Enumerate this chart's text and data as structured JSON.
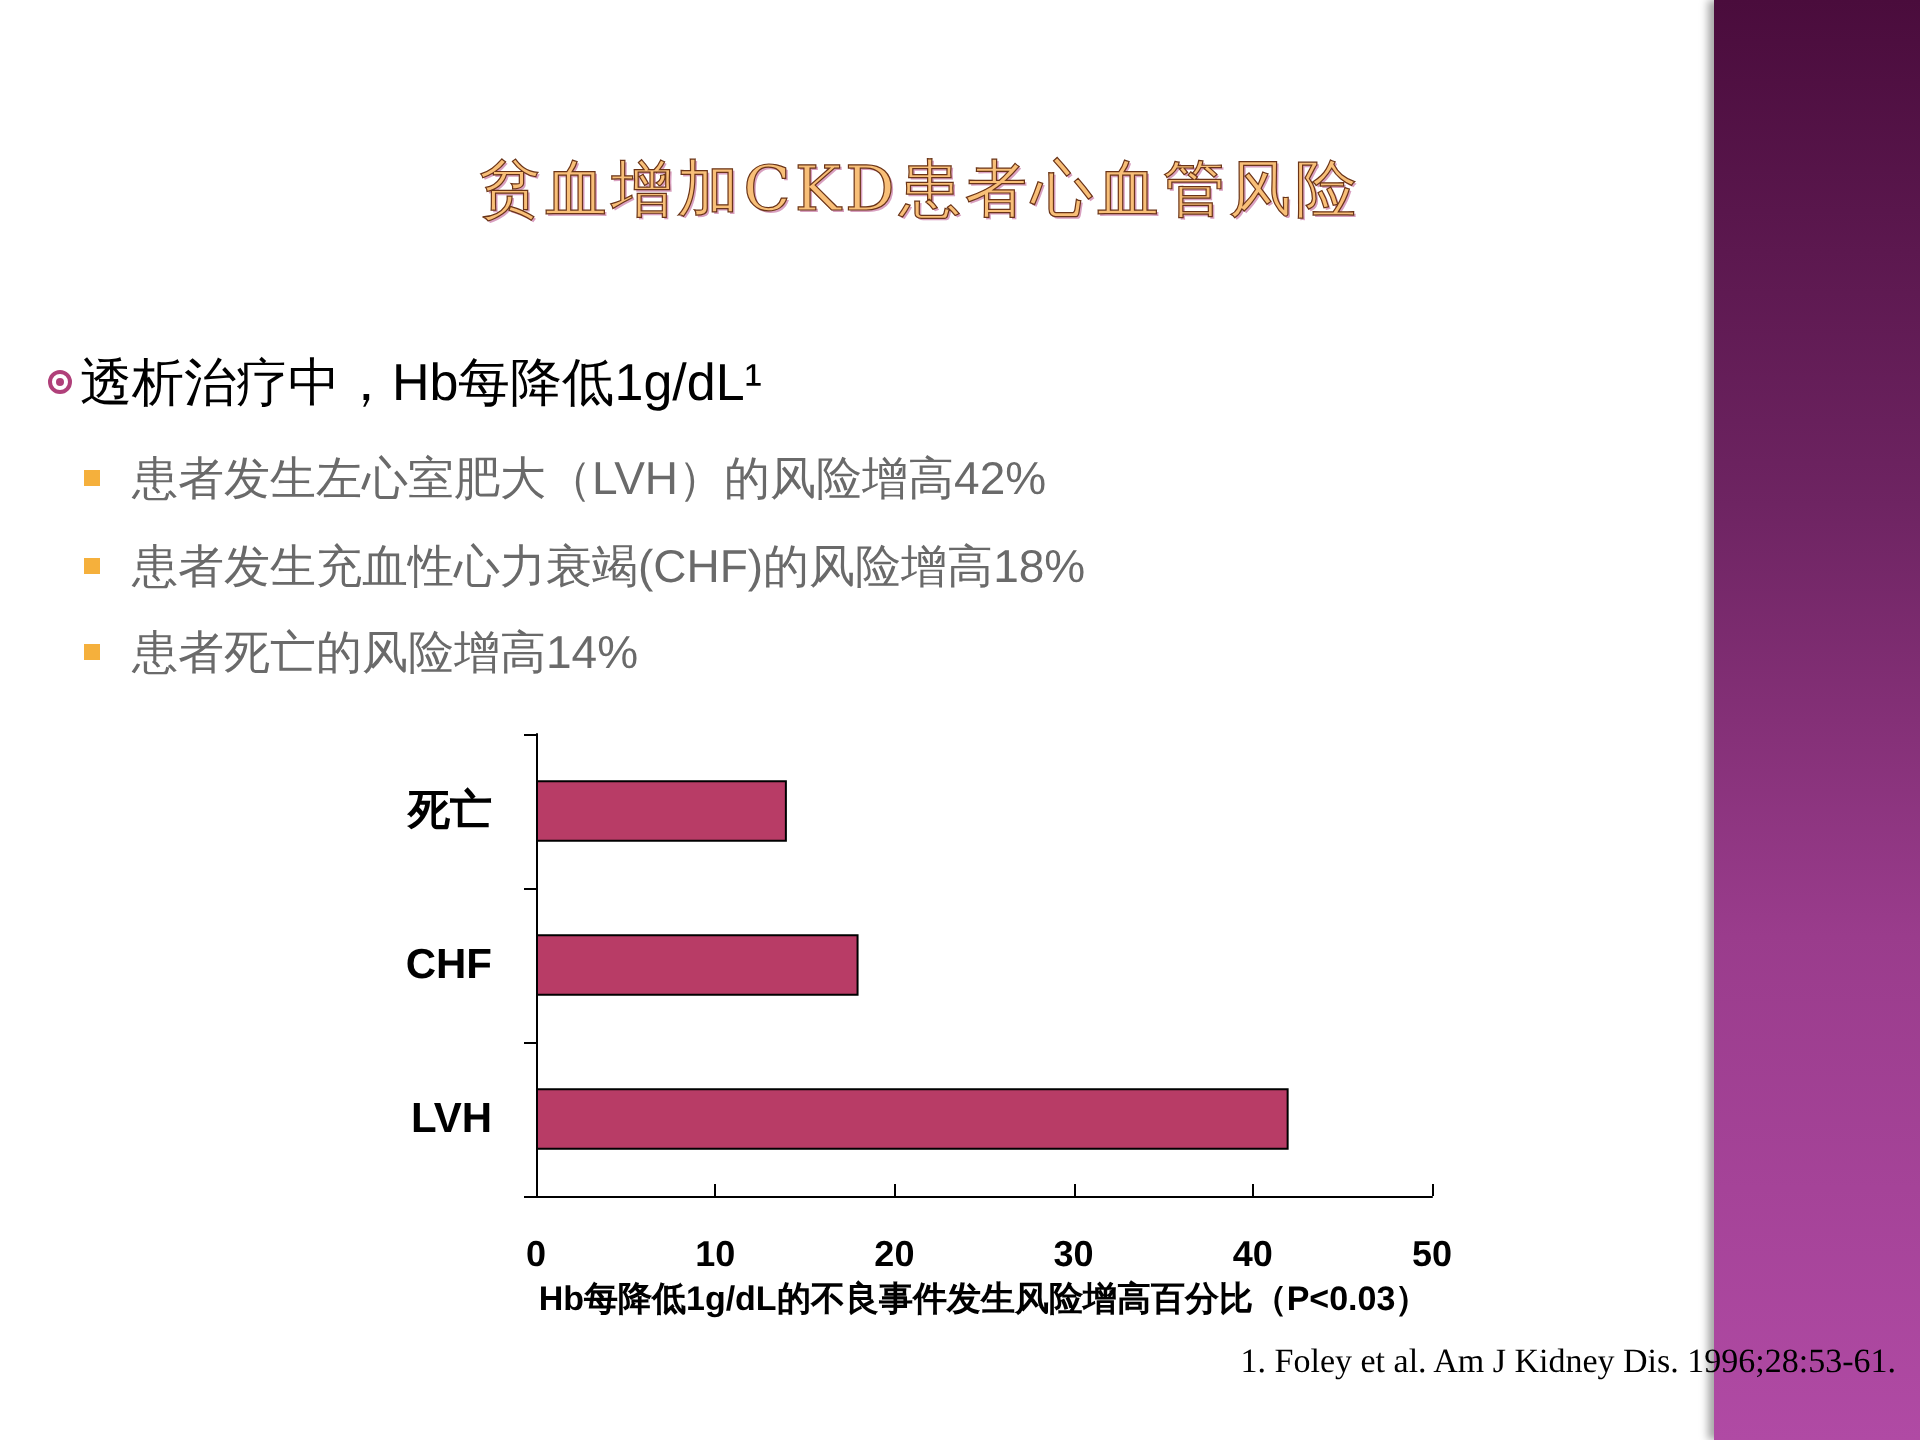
{
  "chart_data": {
    "type": "bar",
    "orientation": "horizontal",
    "title": "贫血增加CKD患者心血管风险",
    "categories": [
      "死亡",
      "CHF",
      "LVH"
    ],
    "values": [
      14,
      18,
      42
    ],
    "color": "#b83c66",
    "xlim": [
      0,
      50
    ],
    "xticks": [
      0,
      10,
      20,
      30,
      40,
      50
    ],
    "xlabel": "Hb每降低1g/dL的不良事件发生风险增高百分比（P<0.03）",
    "annotations": [
      "透析治疗中，Hb每降低1g/dL¹",
      "患者发生左心室肥大（LVH）的风险增高42%",
      "患者发生充血性心力衰竭(CHF)的风险增高18%",
      "患者死亡的风险增高14%",
      "1. Foley et al. Am J Kidney Dis. 1996;28:53-61."
    ]
  }
}
